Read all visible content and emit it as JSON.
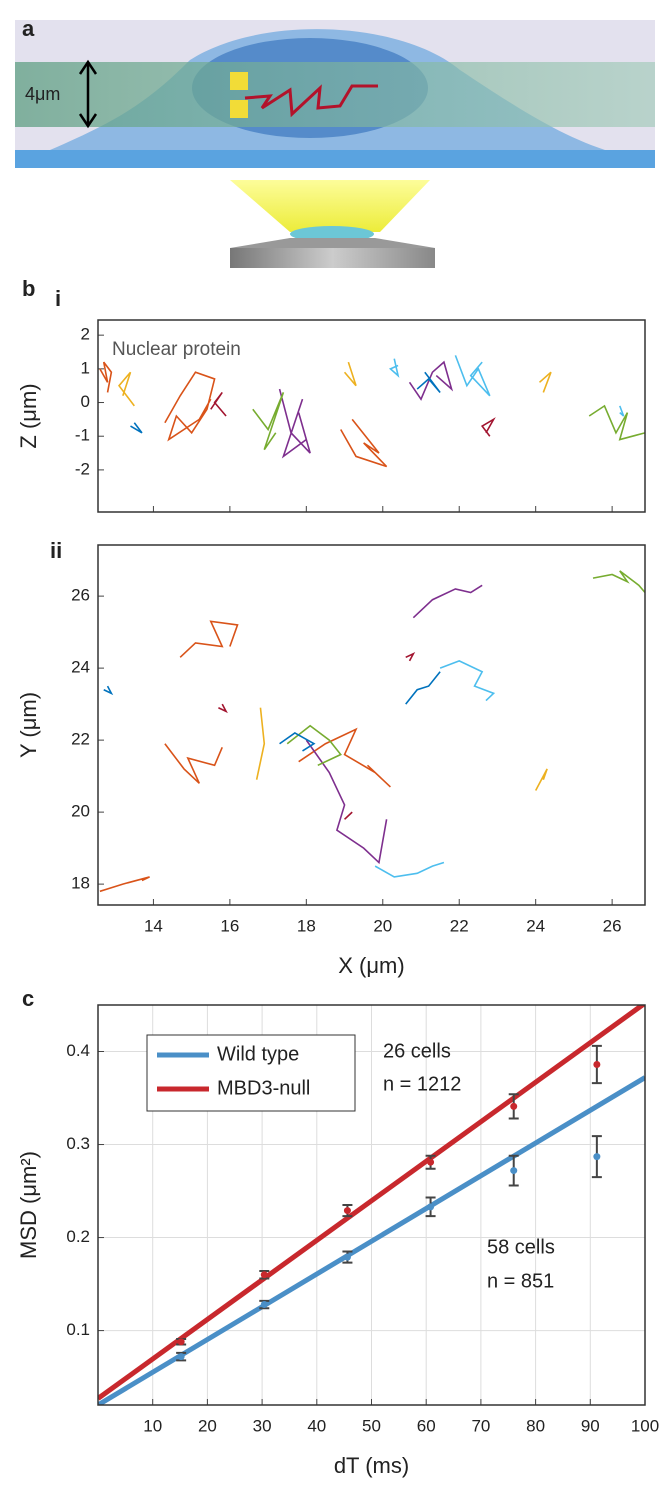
{
  "panel_labels": [
    "a",
    "b",
    "i",
    "ii",
    "c"
  ],
  "diagram": {
    "scale_label": "4μm"
  },
  "chart_data": [
    {
      "type": "track",
      "ylabel": "Z (μm)",
      "annotation": "Nuclear protein",
      "xlim": [
        12.55,
        26.86
      ],
      "ylim": [
        -3.25,
        2.45
      ],
      "xticks": [
        14,
        16,
        18,
        20,
        22,
        24,
        26
      ],
      "yticks": [
        -2,
        -1,
        0,
        1,
        2
      ],
      "series": [
        {
          "color": "#d95319",
          "x": [
            12.6,
            12.8,
            12.7,
            12.9,
            12.8
          ],
          "values": [
            1.0,
            0.6,
            1.2,
            0.9,
            0.3
          ]
        },
        {
          "color": "#d95319",
          "x": [
            14.3,
            14.7,
            15.1,
            15.6,
            15.4,
            15.0,
            14.6,
            14.4,
            15.2,
            15.5
          ],
          "values": [
            -0.6,
            0.2,
            0.9,
            0.7,
            -0.2,
            -0.9,
            -0.4,
            -1.1,
            -0.5,
            0.1
          ]
        },
        {
          "color": "#d95319",
          "x": [
            18.9,
            19.3,
            20.1,
            19.5,
            19.9,
            19.2
          ],
          "values": [
            -0.8,
            -1.6,
            -1.9,
            -1.2,
            -1.5,
            -0.5
          ]
        },
        {
          "color": "#7e2f8e",
          "x": [
            17.3,
            17.6,
            18.1,
            17.8,
            18.0,
            17.4,
            17.9
          ],
          "values": [
            0.4,
            -0.9,
            -1.5,
            -0.3,
            -1.1,
            -1.6,
            0.1
          ]
        },
        {
          "color": "#7e2f8e",
          "x": [
            20.7,
            21.0,
            21.3,
            21.6,
            21.8,
            21.4
          ],
          "values": [
            0.6,
            0.1,
            0.9,
            1.2,
            0.4,
            0.8
          ]
        },
        {
          "color": "#4dbeee",
          "x": [
            21.9,
            22.2,
            22.5,
            22.8,
            22.3,
            22.6
          ],
          "values": [
            1.4,
            0.5,
            1.0,
            0.2,
            0.8,
            1.2
          ]
        },
        {
          "color": "#4dbeee",
          "x": [
            20.3,
            20.4,
            20.2,
            20.4
          ],
          "values": [
            1.3,
            0.8,
            1.0,
            1.1
          ]
        },
        {
          "color": "#4dbeee",
          "x": [
            26.2,
            26.3,
            26.2
          ],
          "values": [
            -0.1,
            -0.4,
            -0.3
          ]
        },
        {
          "color": "#77ac30",
          "x": [
            25.4,
            25.8,
            26.1,
            26.4,
            26.2,
            26.86
          ],
          "values": [
            -0.4,
            -0.1,
            -0.9,
            -0.3,
            -1.1,
            -0.9
          ]
        },
        {
          "color": "#77ac30",
          "x": [
            16.6,
            17.0,
            17.4,
            16.9,
            17.2
          ],
          "values": [
            -0.2,
            -0.8,
            0.3,
            -1.4,
            -0.9
          ]
        },
        {
          "color": "#0072bd",
          "x": [
            20.9,
            21.2,
            21.5,
            21.1
          ],
          "values": [
            0.4,
            0.7,
            0.3,
            0.9
          ]
        },
        {
          "color": "#0072bd",
          "x": [
            13.5,
            13.7,
            13.4
          ],
          "values": [
            -0.6,
            -0.9,
            -0.7
          ]
        },
        {
          "color": "#edb120",
          "x": [
            13.2,
            13.4,
            13.1,
            13.5
          ],
          "values": [
            0.2,
            0.9,
            0.5,
            -0.1
          ]
        },
        {
          "color": "#edb120",
          "x": [
            24.2,
            24.4,
            24.1
          ],
          "values": [
            0.3,
            0.9,
            0.6
          ]
        },
        {
          "color": "#edb120",
          "x": [
            19.1,
            19.3,
            19.0
          ],
          "values": [
            1.2,
            0.5,
            0.9
          ]
        },
        {
          "color": "#a2142f",
          "x": [
            15.5,
            15.8,
            15.6,
            15.9
          ],
          "values": [
            -0.2,
            0.3,
            0.0,
            -0.4
          ]
        },
        {
          "color": "#a2142f",
          "x": [
            22.7,
            22.9,
            22.6,
            22.8
          ],
          "values": [
            -0.9,
            -0.5,
            -0.7,
            -1.0
          ]
        }
      ]
    },
    {
      "type": "track",
      "xlabel": "X (μm)",
      "ylabel": "Y (μm)",
      "xlim": [
        12.55,
        26.86
      ],
      "ylim": [
        17.42,
        27.42
      ],
      "xticks": [
        14,
        16,
        18,
        20,
        22,
        24,
        26
      ],
      "yticks": [
        18,
        20,
        22,
        24,
        26
      ],
      "series": [
        {
          "color": "#d95319",
          "x": [
            12.6,
            13.2,
            13.9,
            13.7
          ],
          "values": [
            17.8,
            18.0,
            18.2,
            18.1
          ]
        },
        {
          "color": "#d95319",
          "x": [
            14.7,
            15.1,
            15.8,
            15.5,
            16.2,
            16.0
          ],
          "values": [
            24.3,
            24.7,
            24.6,
            25.3,
            25.2,
            24.6
          ]
        },
        {
          "color": "#d95319",
          "x": [
            14.3,
            14.8,
            15.2,
            14.9,
            15.6,
            15.8
          ],
          "values": [
            21.9,
            21.2,
            20.8,
            21.5,
            21.3,
            21.8
          ]
        },
        {
          "color": "#d95319",
          "x": [
            17.8,
            18.5,
            19.3,
            19.0,
            19.8,
            20.2,
            19.6
          ],
          "values": [
            21.4,
            21.9,
            22.3,
            21.6,
            21.1,
            20.7,
            21.3
          ]
        },
        {
          "color": "#7e2f8e",
          "x": [
            18.0,
            18.6,
            19.0,
            18.8,
            19.5,
            19.9,
            20.1
          ],
          "values": [
            22.0,
            21.1,
            20.2,
            19.5,
            19.0,
            18.6,
            19.8
          ]
        },
        {
          "color": "#7e2f8e",
          "x": [
            20.8,
            21.3,
            21.9,
            22.3,
            22.6
          ],
          "values": [
            25.4,
            25.9,
            26.2,
            26.1,
            26.3
          ]
        },
        {
          "color": "#4dbeee",
          "x": [
            21.5,
            22.0,
            22.6,
            22.4,
            22.9,
            22.7
          ],
          "values": [
            24.0,
            24.2,
            23.9,
            23.5,
            23.3,
            23.1
          ]
        },
        {
          "color": "#4dbeee",
          "x": [
            19.8,
            20.3,
            20.9,
            21.3,
            21.6
          ],
          "values": [
            18.5,
            18.2,
            18.3,
            18.5,
            18.6
          ]
        },
        {
          "color": "#77ac30",
          "x": [
            25.5,
            26.0,
            26.4,
            26.2,
            26.7,
            26.86
          ],
          "values": [
            26.5,
            26.6,
            26.4,
            26.7,
            26.3,
            26.1
          ]
        },
        {
          "color": "#77ac30",
          "x": [
            17.5,
            18.1,
            18.6,
            18.9,
            18.3
          ],
          "values": [
            21.9,
            22.4,
            22.0,
            21.6,
            21.3
          ]
        },
        {
          "color": "#0072bd",
          "x": [
            20.6,
            20.9,
            21.2,
            21.5
          ],
          "values": [
            23.0,
            23.4,
            23.5,
            23.9
          ]
        },
        {
          "color": "#0072bd",
          "x": [
            17.3,
            17.7,
            18.2,
            17.9
          ],
          "values": [
            21.9,
            22.2,
            21.9,
            21.7
          ]
        },
        {
          "color": "#0072bd",
          "x": [
            12.7,
            12.9,
            12.8
          ],
          "values": [
            23.4,
            23.3,
            23.5
          ]
        },
        {
          "color": "#edb120",
          "x": [
            16.7,
            16.9,
            16.8
          ],
          "values": [
            20.9,
            21.9,
            22.9
          ]
        },
        {
          "color": "#edb120",
          "x": [
            24.0,
            24.3,
            24.2
          ],
          "values": [
            20.6,
            21.2,
            20.9
          ]
        },
        {
          "color": "#a2142f",
          "x": [
            19.0,
            19.2,
            19.1
          ],
          "values": [
            19.8,
            20.0,
            19.9
          ]
        },
        {
          "color": "#a2142f",
          "x": [
            20.6,
            20.8,
            20.7
          ],
          "values": [
            24.3,
            24.4,
            24.2
          ]
        },
        {
          "color": "#a2142f",
          "x": [
            15.7,
            15.9,
            15.8
          ],
          "values": [
            22.9,
            22.8,
            23.0
          ]
        }
      ]
    },
    {
      "type": "msd",
      "xlabel": "dT (ms)",
      "ylabel": "MSD (μm²)",
      "xlim": [
        0,
        100
      ],
      "ylim": [
        0.02,
        0.45
      ],
      "xticks": [
        10,
        20,
        30,
        40,
        50,
        60,
        70,
        80,
        90,
        100
      ],
      "yticks": [
        0.1,
        0.2,
        0.3,
        0.4
      ],
      "grid": true,
      "legend": "upper left",
      "annotations": [
        "26 cells",
        "n = 1212",
        "58 cells",
        "n = 851"
      ],
      "series": [
        {
          "name": "Wild type",
          "color": "#4a8fc7",
          "fit_x": [
            0,
            100
          ],
          "fit_values": [
            0.02,
            0.372
          ],
          "x": [
            15.2,
            30.4,
            45.6,
            60.8,
            76,
            91.2
          ],
          "values": [
            0.072,
            0.128,
            0.179,
            0.233,
            0.272,
            0.287
          ],
          "errors": [
            0.004,
            0.004,
            0.006,
            0.01,
            0.016,
            0.022
          ]
        },
        {
          "name": "MBD3-null",
          "color": "#c8282d",
          "fit_x": [
            0,
            100
          ],
          "fit_values": [
            0.027,
            0.452
          ],
          "x": [
            15.2,
            30.4,
            45.6,
            60.8,
            76,
            91.2
          ],
          "values": [
            0.088,
            0.16,
            0.229,
            0.281,
            0.341,
            0.386
          ],
          "errors": [
            0.003,
            0.004,
            0.006,
            0.007,
            0.013,
            0.02
          ]
        }
      ]
    }
  ]
}
